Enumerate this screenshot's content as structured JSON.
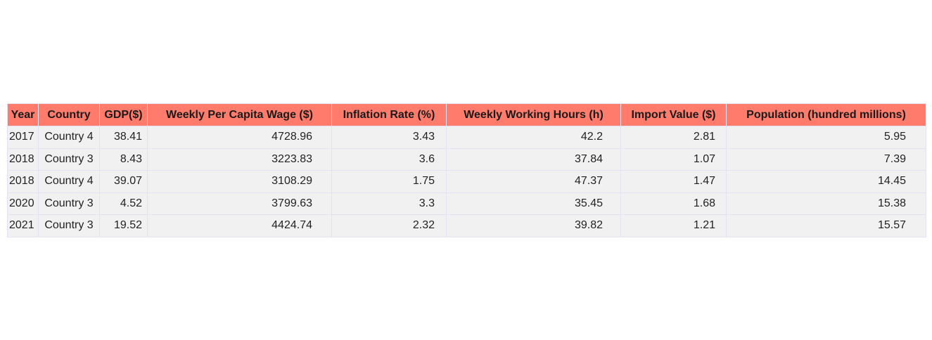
{
  "chart_data": {
    "type": "table",
    "columns": [
      "Year",
      "Country",
      "GDP($)",
      "Weekly Per Capita Wage ($)",
      "Inflation Rate (%)",
      "Weekly Working Hours (h)",
      "Import Value ($)",
      "Population (hundred millions)"
    ],
    "rows": [
      [
        "2017",
        "Country 4",
        "38.41",
        "4728.96",
        "3.43",
        "42.2",
        "2.81",
        "5.95"
      ],
      [
        "2018",
        "Country 3",
        "8.43",
        "3223.83",
        "3.6",
        "37.84",
        "1.07",
        "7.39"
      ],
      [
        "2018",
        "Country 4",
        "39.07",
        "3108.29",
        "1.75",
        "47.37",
        "1.47",
        "14.45"
      ],
      [
        "2020",
        "Country 3",
        "4.52",
        "3799.63",
        "3.3",
        "35.45",
        "1.68",
        "15.38"
      ],
      [
        "2021",
        "Country 3",
        "19.52",
        "4424.74",
        "2.32",
        "39.82",
        "1.21",
        "15.57"
      ]
    ],
    "header_color": "#ff7b6b",
    "cell_color": "#f1f1f2",
    "border_color": "#e2e2f2"
  }
}
